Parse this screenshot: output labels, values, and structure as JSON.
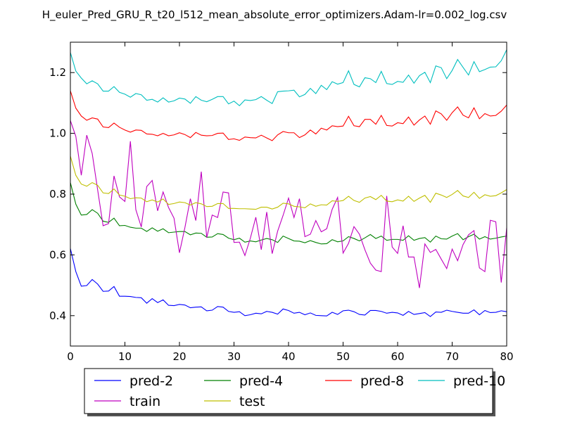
{
  "chart_data": {
    "type": "line",
    "title": "H_euler_Pred_GRU_R_t20_l512_mean_absolute_error_optimizers.Adam-lr=0.002_log.csv",
    "xlabel": "",
    "ylabel": "",
    "xlim": [
      0,
      80
    ],
    "ylim": [
      0.3,
      1.3
    ],
    "x_ticks": [
      0,
      10,
      20,
      30,
      40,
      50,
      60,
      70,
      80
    ],
    "x_tick_labels": [
      "0",
      "10",
      "20",
      "30",
      "40",
      "50",
      "60",
      "70",
      "80"
    ],
    "y_ticks": [
      0.4,
      0.6,
      0.8,
      1.0,
      1.2
    ],
    "y_tick_labels": [
      "0.4",
      "0.6",
      "0.8",
      "1.0",
      "1.2"
    ],
    "grid": false,
    "legend_placement": "bottom-center-outside",
    "legend_columns": 4,
    "series": [
      {
        "name": "pred-2",
        "color": "#0000ff",
        "values": [
          0.621,
          0.545,
          0.497,
          0.499,
          0.519,
          0.504,
          0.48,
          0.481,
          0.496,
          0.464,
          0.464,
          0.463,
          0.46,
          0.459,
          0.441,
          0.456,
          0.443,
          0.452,
          0.434,
          0.433,
          0.437,
          0.435,
          0.426,
          0.428,
          0.429,
          0.416,
          0.418,
          0.43,
          0.428,
          0.414,
          0.411,
          0.413,
          0.4,
          0.403,
          0.408,
          0.406,
          0.414,
          0.411,
          0.405,
          0.422,
          0.417,
          0.408,
          0.411,
          0.403,
          0.409,
          0.401,
          0.4,
          0.399,
          0.411,
          0.404,
          0.416,
          0.418,
          0.413,
          0.404,
          0.402,
          0.417,
          0.417,
          0.414,
          0.408,
          0.411,
          0.409,
          0.401,
          0.414,
          0.404,
          0.407,
          0.41,
          0.397,
          0.412,
          0.411,
          0.418,
          0.414,
          0.411,
          0.408,
          0.408,
          0.419,
          0.403,
          0.417,
          0.41,
          0.411,
          0.416,
          0.413
        ]
      },
      {
        "name": "pred-4",
        "color": "#008000",
        "values": [
          0.838,
          0.767,
          0.731,
          0.733,
          0.749,
          0.737,
          0.711,
          0.707,
          0.721,
          0.696,
          0.697,
          0.691,
          0.688,
          0.688,
          0.677,
          0.689,
          0.678,
          0.686,
          0.673,
          0.675,
          0.677,
          0.677,
          0.666,
          0.672,
          0.671,
          0.658,
          0.659,
          0.67,
          0.667,
          0.655,
          0.65,
          0.655,
          0.642,
          0.646,
          0.643,
          0.649,
          0.654,
          0.65,
          0.641,
          0.662,
          0.654,
          0.646,
          0.645,
          0.64,
          0.647,
          0.641,
          0.636,
          0.637,
          0.65,
          0.643,
          0.646,
          0.66,
          0.654,
          0.646,
          0.656,
          0.667,
          0.654,
          0.662,
          0.648,
          0.651,
          0.651,
          0.648,
          0.663,
          0.648,
          0.654,
          0.657,
          0.642,
          0.662,
          0.653,
          0.652,
          0.662,
          0.67,
          0.65,
          0.66,
          0.668,
          0.652,
          0.66,
          0.652,
          0.655,
          0.659,
          0.662
        ]
      },
      {
        "name": "pred-8",
        "color": "#ff0000",
        "values": [
          1.14,
          1.083,
          1.057,
          1.043,
          1.051,
          1.047,
          1.021,
          1.019,
          1.034,
          1.02,
          1.011,
          1.004,
          1.011,
          1.01,
          0.998,
          0.997,
          0.992,
          1.0,
          0.992,
          0.995,
          1.002,
          0.996,
          0.986,
          1.003,
          0.994,
          0.992,
          0.993,
          1.0,
          1.001,
          0.98,
          0.982,
          0.977,
          0.988,
          0.986,
          0.985,
          0.994,
          0.985,
          0.976,
          0.995,
          1.006,
          1.002,
          1.002,
          0.986,
          0.995,
          1.011,
          0.998,
          1.017,
          1.011,
          1.025,
          1.022,
          1.024,
          1.056,
          1.025,
          1.022,
          1.046,
          1.046,
          1.03,
          1.059,
          1.026,
          1.024,
          1.035,
          1.032,
          1.054,
          1.027,
          1.044,
          1.057,
          1.03,
          1.074,
          1.064,
          1.043,
          1.068,
          1.087,
          1.06,
          1.051,
          1.084,
          1.048,
          1.065,
          1.057,
          1.059,
          1.073,
          1.093
        ]
      },
      {
        "name": "pred-10",
        "color": "#00bfbf",
        "values": [
          1.266,
          1.205,
          1.182,
          1.163,
          1.173,
          1.163,
          1.139,
          1.139,
          1.154,
          1.135,
          1.129,
          1.119,
          1.131,
          1.127,
          1.109,
          1.112,
          1.103,
          1.117,
          1.103,
          1.107,
          1.116,
          1.113,
          1.099,
          1.121,
          1.109,
          1.104,
          1.112,
          1.121,
          1.121,
          1.097,
          1.106,
          1.091,
          1.11,
          1.108,
          1.111,
          1.121,
          1.109,
          1.098,
          1.137,
          1.139,
          1.14,
          1.142,
          1.12,
          1.128,
          1.148,
          1.131,
          1.158,
          1.144,
          1.17,
          1.162,
          1.167,
          1.206,
          1.161,
          1.153,
          1.183,
          1.18,
          1.167,
          1.204,
          1.164,
          1.161,
          1.171,
          1.168,
          1.192,
          1.165,
          1.19,
          1.201,
          1.167,
          1.222,
          1.216,
          1.18,
          1.207,
          1.243,
          1.217,
          1.192,
          1.236,
          1.203,
          1.21,
          1.218,
          1.219,
          1.239,
          1.275
        ]
      },
      {
        "name": "train",
        "color": "#bf00bf",
        "values": [
          1.042,
          0.99,
          0.862,
          0.994,
          0.934,
          0.814,
          0.696,
          0.703,
          0.86,
          0.791,
          0.776,
          0.974,
          0.749,
          0.692,
          0.825,
          0.845,
          0.745,
          0.807,
          0.756,
          0.721,
          0.607,
          0.69,
          0.785,
          0.713,
          0.874,
          0.657,
          0.731,
          0.723,
          0.807,
          0.804,
          0.641,
          0.642,
          0.598,
          0.655,
          0.724,
          0.617,
          0.741,
          0.604,
          0.678,
          0.73,
          0.787,
          0.723,
          0.785,
          0.66,
          0.668,
          0.713,
          0.676,
          0.686,
          0.75,
          0.789,
          0.606,
          0.638,
          0.693,
          0.668,
          0.617,
          0.573,
          0.55,
          0.545,
          0.794,
          0.626,
          0.605,
          0.696,
          0.593,
          0.593,
          0.491,
          0.636,
          0.608,
          0.618,
          0.586,
          0.555,
          0.619,
          0.581,
          0.634,
          0.666,
          0.68,
          0.557,
          0.545,
          0.714,
          0.709,
          0.509,
          0.689
        ]
      },
      {
        "name": "test",
        "color": "#bfbf00",
        "values": [
          0.925,
          0.862,
          0.833,
          0.826,
          0.838,
          0.829,
          0.804,
          0.802,
          0.817,
          0.797,
          0.793,
          0.785,
          0.788,
          0.787,
          0.775,
          0.781,
          0.774,
          0.784,
          0.766,
          0.769,
          0.774,
          0.772,
          0.764,
          0.772,
          0.768,
          0.759,
          0.76,
          0.769,
          0.769,
          0.753,
          0.753,
          0.752,
          0.752,
          0.751,
          0.75,
          0.757,
          0.757,
          0.751,
          0.757,
          0.77,
          0.768,
          0.76,
          0.758,
          0.755,
          0.768,
          0.76,
          0.765,
          0.764,
          0.778,
          0.776,
          0.779,
          0.793,
          0.779,
          0.773,
          0.787,
          0.792,
          0.782,
          0.796,
          0.777,
          0.775,
          0.781,
          0.777,
          0.793,
          0.776,
          0.787,
          0.796,
          0.773,
          0.803,
          0.797,
          0.789,
          0.799,
          0.812,
          0.794,
          0.789,
          0.806,
          0.786,
          0.798,
          0.793,
          0.795,
          0.804,
          0.815
        ]
      }
    ]
  }
}
